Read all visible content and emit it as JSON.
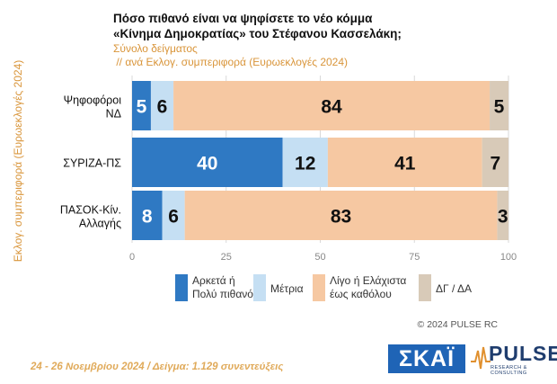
{
  "title_line1": "Πόσο πιθανό είναι να ψηφίσετε το νέο κόμμα",
  "title_line2": "«Κίνημα Δημοκρατίας» του Στέφανου Κασσελάκη;",
  "subtitle_line1": "Σύνολο δείγματος",
  "subtitle_line2": " // ανά Εκλογ. συμπεριφορά (Ευρωεκλογές 2024)",
  "y_axis_label": "Εκλογ. συμπεριφορά (Ευρωεκλογές 2024)",
  "copyright": "© 2024 PULSE RC",
  "footer": "24 - 26 Νοεμβρίου 2024  /  Δείγμα:  1.129 συνεντεύξεις",
  "logo_skai": "ΣΚΑΪ",
  "logo_pulse": "PULSE",
  "logo_pulse_sub": "RESEARCH & CONSULTING",
  "watermark": "PULSE",
  "chart_data": {
    "type": "bar",
    "orientation": "horizontal",
    "stacked": true,
    "categories": [
      [
        "Ψηφοφόροι",
        "ΝΔ"
      ],
      [
        "ΣΥΡΙΖΑ-ΠΣ"
      ],
      [
        "ΠΑΣΟΚ-Κίν.",
        "Αλλαγής"
      ]
    ],
    "series": [
      {
        "name": [
          "Αρκετά ή",
          "Πολύ πιθανό"
        ],
        "color": "#2f79c3",
        "values": [
          5,
          40,
          8
        ]
      },
      {
        "name": [
          "Μέτρια"
        ],
        "color": "#c5dff3",
        "values": [
          6,
          12,
          6
        ]
      },
      {
        "name": [
          "Λίγο ή Ελάχιστα",
          "έως καθόλου"
        ],
        "color": "#f6c8a2",
        "values": [
          84,
          41,
          83
        ]
      },
      {
        "name": [
          "ΔΓ / ΔΑ"
        ],
        "color": "#d8cab8",
        "values": [
          5,
          7,
          3
        ]
      }
    ],
    "xlim": [
      0,
      100
    ],
    "xticks": [
      0,
      25,
      50,
      75,
      100
    ],
    "xlabel": "",
    "grid": true,
    "legend_position": "bottom"
  }
}
